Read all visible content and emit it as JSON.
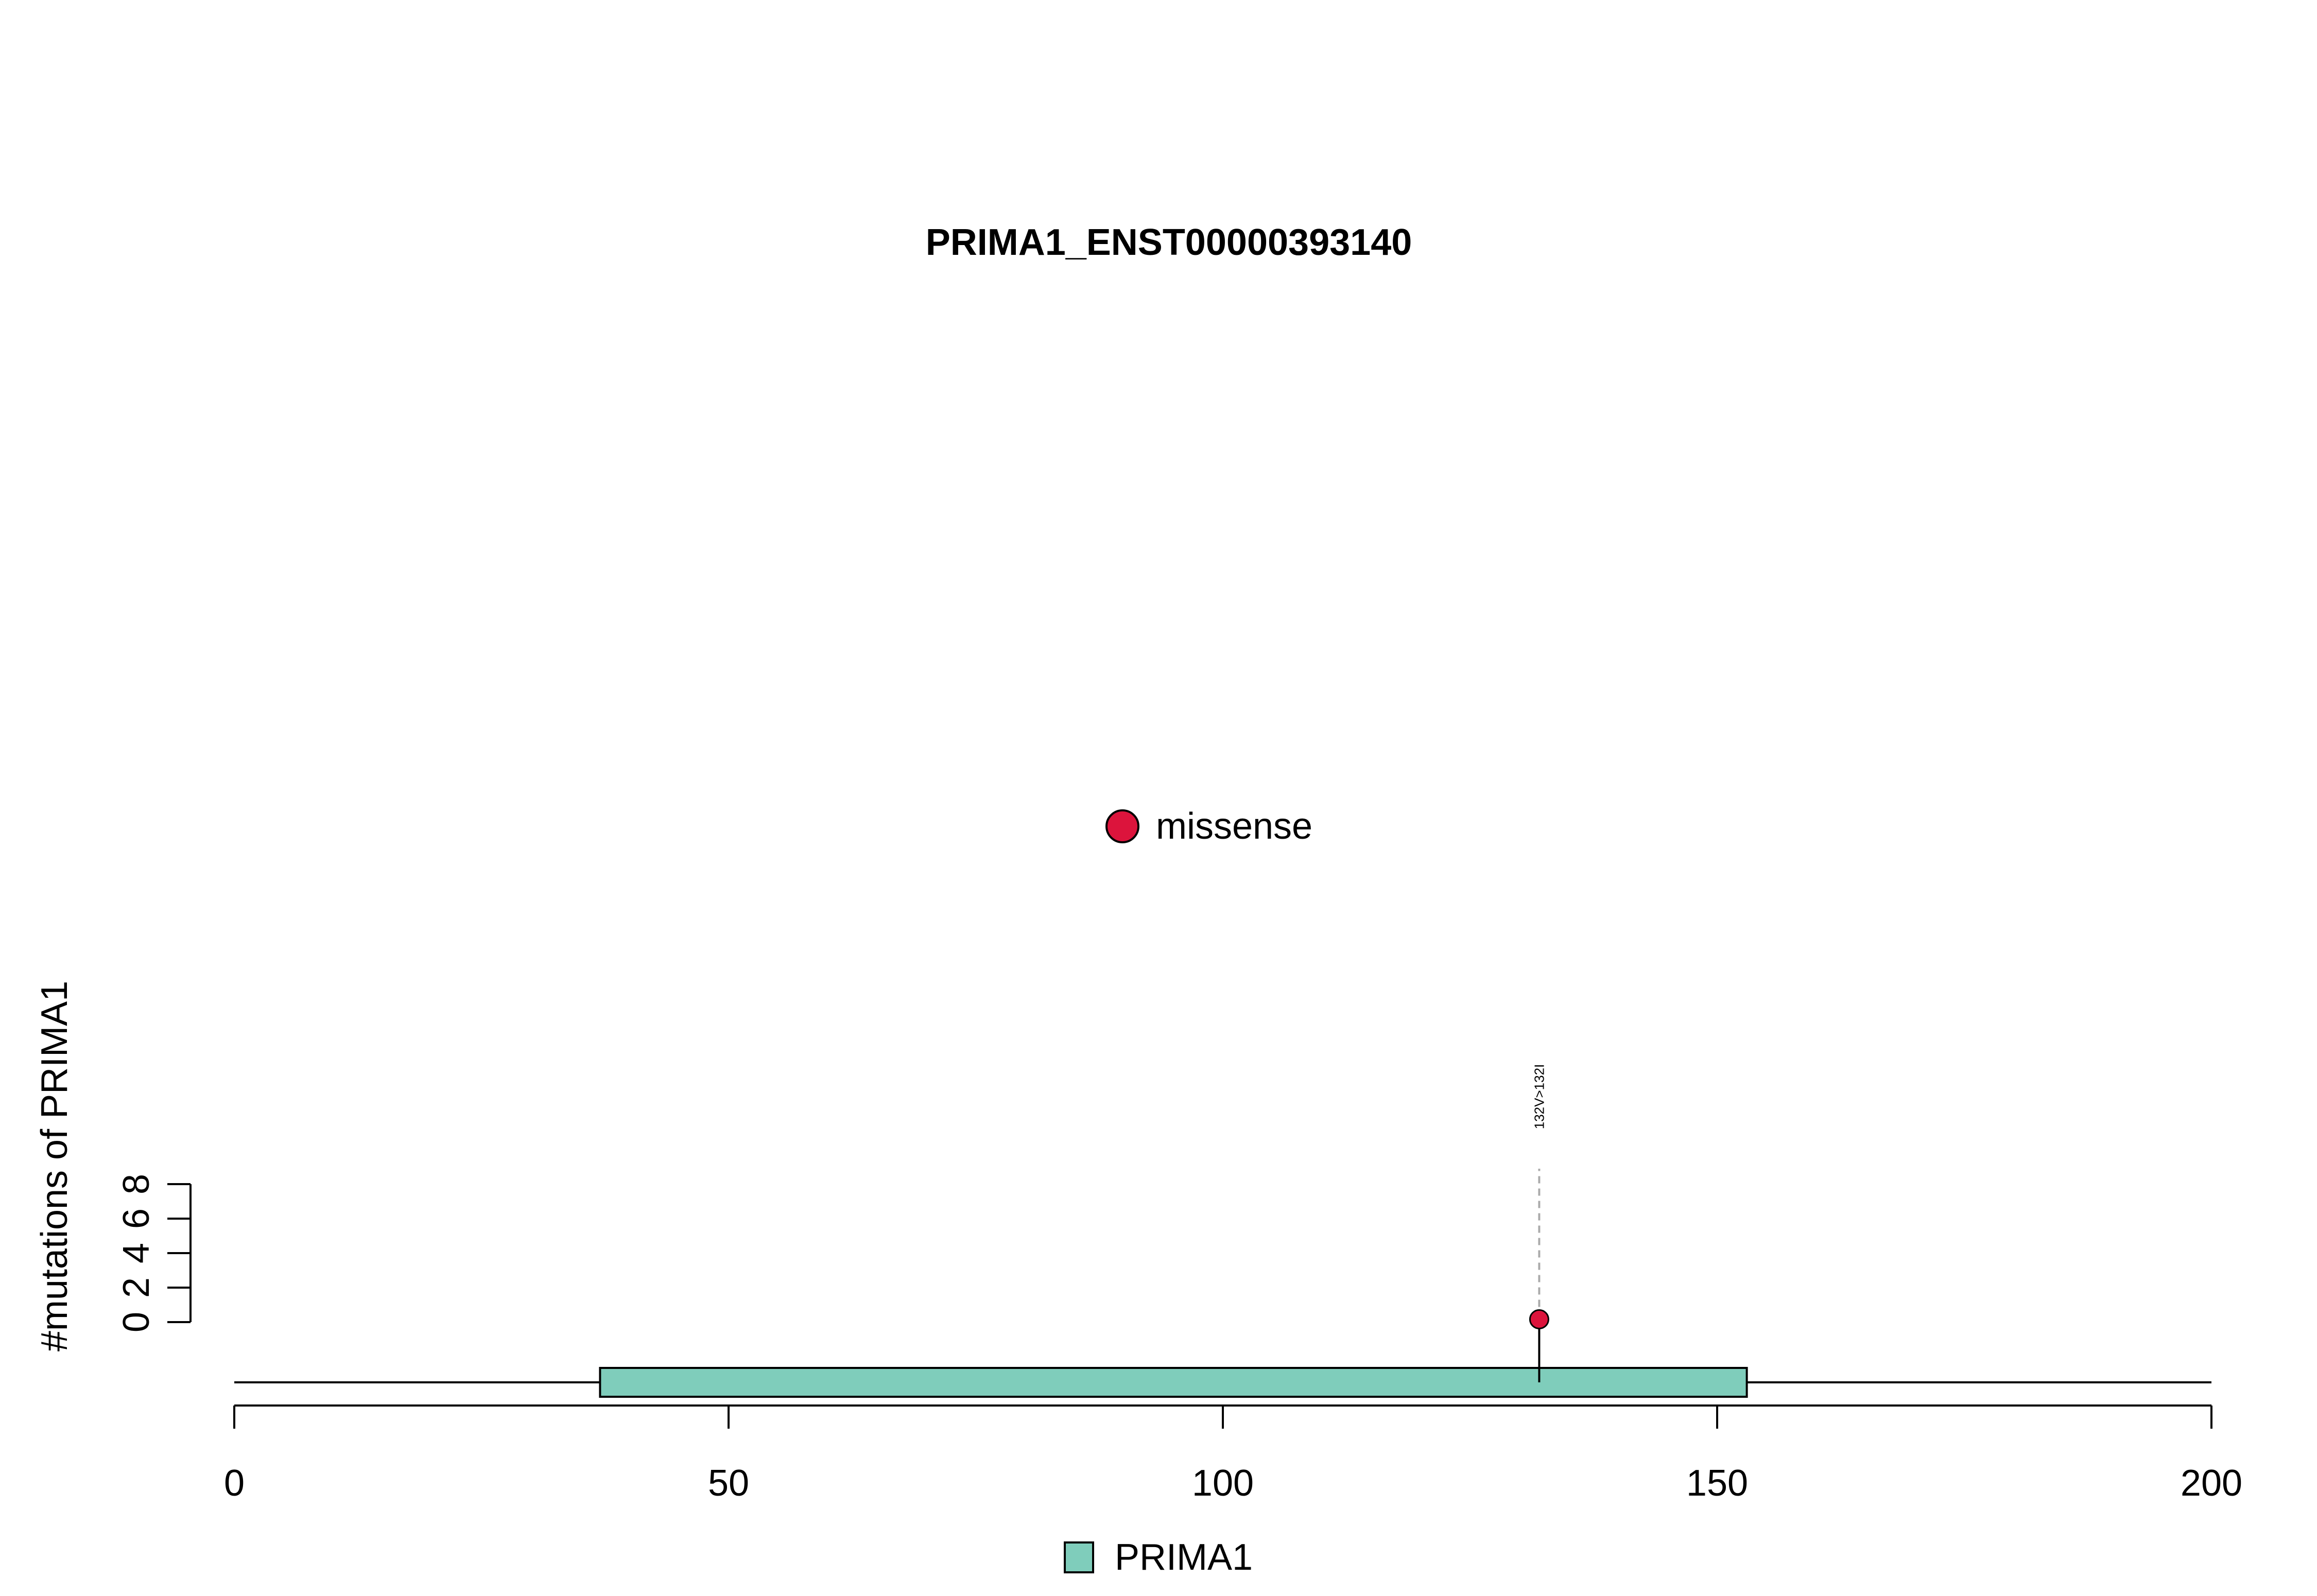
{
  "chart_data": {
    "type": "lollipop",
    "title": "PRIMA1_ENST00000393140",
    "ylabel": "#mutations of PRIMA1",
    "xlim": [
      0,
      200
    ],
    "x_ticks": [
      0,
      50,
      100,
      150,
      200
    ],
    "y_ticks": [
      0,
      2,
      4,
      6,
      8
    ],
    "ylim": [
      0,
      8
    ],
    "protein_length": 200,
    "domains": [
      {
        "name": "PRIMA1",
        "start": 37,
        "end": 153,
        "color": "#7fcdbb"
      }
    ],
    "mutations": [
      {
        "position": 132,
        "count": 1,
        "label": "132V>132I",
        "type": "missense",
        "color": "#dc143c"
      }
    ],
    "legend": {
      "mutation_types": [
        {
          "label": "missense",
          "color": "#dc143c"
        }
      ],
      "domains": [
        {
          "label": "PRIMA1",
          "color": "#7fcdbb"
        }
      ]
    }
  }
}
